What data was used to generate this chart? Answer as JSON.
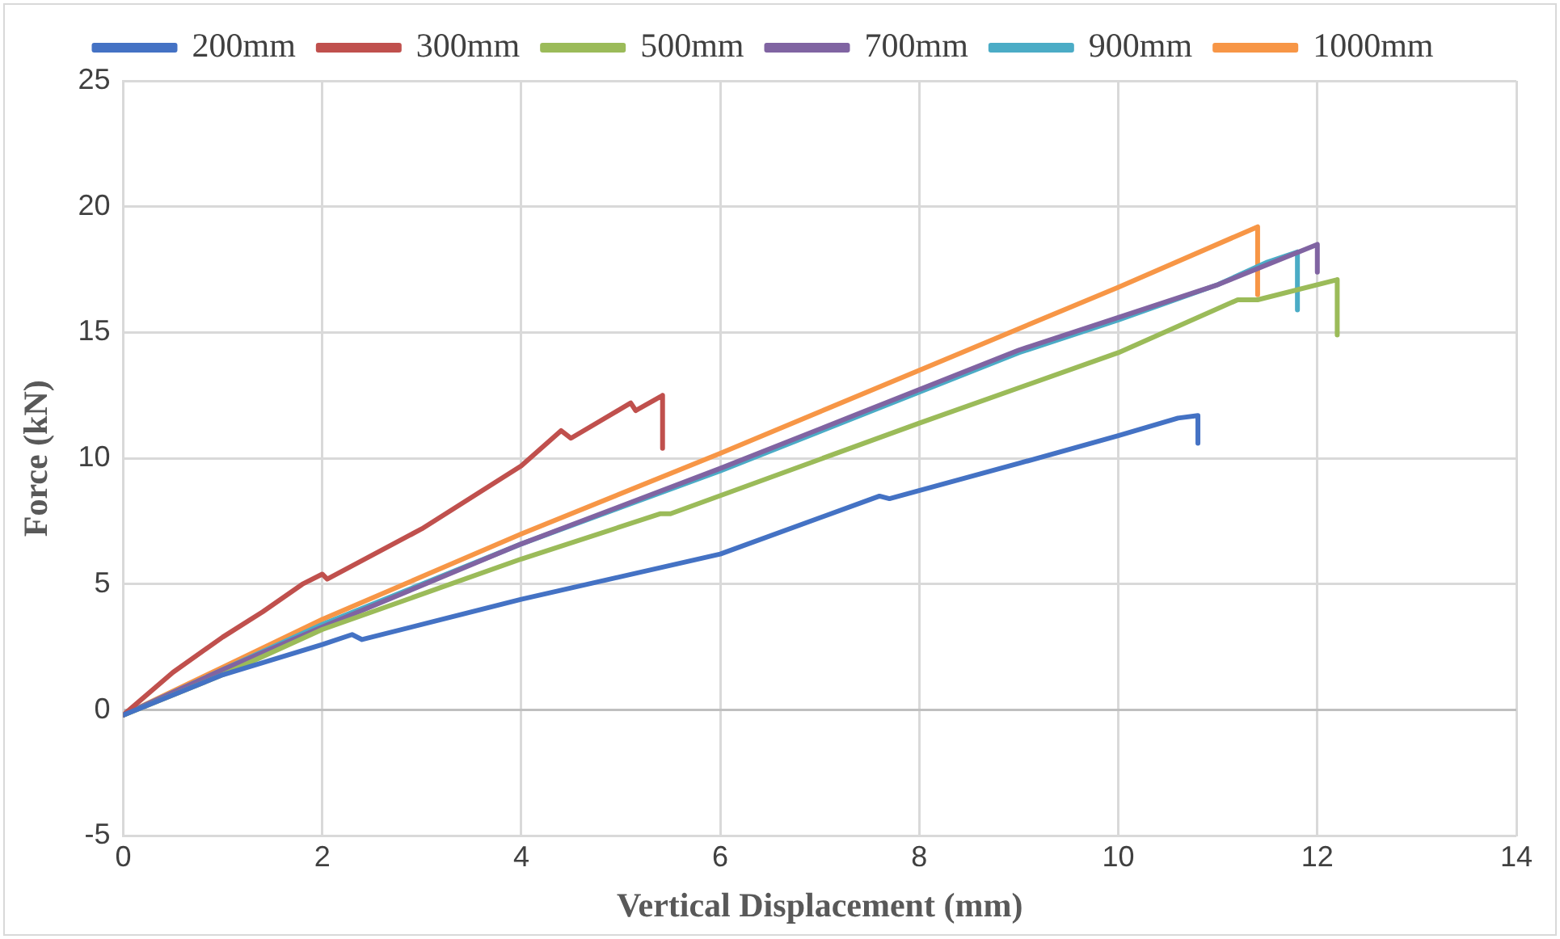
{
  "chart_data": {
    "type": "line",
    "xlabel": "Vertical Displacement (mm)",
    "ylabel": "Force (kN)",
    "xlim": [
      0,
      14
    ],
    "xticks": [
      0,
      2,
      4,
      6,
      8,
      10,
      12,
      14
    ],
    "ylim": [
      -5,
      25
    ],
    "yticks": [
      -5,
      0,
      5,
      10,
      15,
      20,
      25
    ],
    "grid": true,
    "legend": "top",
    "marker": "none",
    "line_style": "solid",
    "series": [
      {
        "name": "200mm",
        "color": "#4472c4",
        "x": [
          0,
          1,
          2,
          2.3,
          2.4,
          4,
          6,
          7.6,
          7.7,
          9,
          10,
          10.6,
          10.8,
          10.8
        ],
        "values": [
          -0.2,
          1.4,
          2.6,
          3.0,
          2.8,
          4.4,
          6.2,
          8.5,
          8.4,
          9.8,
          10.9,
          11.6,
          11.7,
          10.6
        ]
      },
      {
        "name": "300mm",
        "color": "#c0504d",
        "x": [
          0,
          0.5,
          1,
          1.4,
          1.8,
          2,
          2.05,
          3,
          4,
          4.4,
          4.5,
          5.1,
          5.15,
          5.42,
          5.42
        ],
        "values": [
          -0.2,
          1.5,
          2.9,
          3.9,
          5.0,
          5.4,
          5.2,
          7.2,
          9.7,
          11.1,
          10.8,
          12.2,
          11.9,
          12.5,
          10.4
        ]
      },
      {
        "name": "500mm",
        "color": "#9bbb59",
        "x": [
          0,
          1,
          2,
          4,
          5.4,
          5.5,
          8,
          10,
          11.2,
          11.4,
          12.2,
          12.2
        ],
        "values": [
          -0.2,
          1.4,
          3.2,
          6.0,
          7.8,
          7.8,
          11.4,
          14.2,
          16.3,
          16.3,
          17.1,
          14.9
        ]
      },
      {
        "name": "700mm",
        "color": "#8064a2",
        "x": [
          0,
          1,
          2,
          4,
          6,
          9,
          10,
          11,
          12,
          12
        ],
        "values": [
          -0.2,
          1.6,
          3.3,
          6.6,
          9.6,
          14.3,
          15.6,
          16.9,
          18.5,
          17.4
        ]
      },
      {
        "name": "900mm",
        "color": "#4bacc6",
        "x": [
          0,
          1,
          2,
          4,
          6,
          9,
          10,
          11,
          11.5,
          11.8,
          11.8
        ],
        "values": [
          -0.2,
          1.6,
          3.4,
          6.6,
          9.5,
          14.2,
          15.5,
          16.9,
          17.8,
          18.2,
          15.9
        ]
      },
      {
        "name": "1000mm",
        "color": "#f79646",
        "x": [
          0,
          1,
          2,
          4,
          6,
          8,
          10,
          11.4,
          11.4
        ],
        "values": [
          -0.2,
          1.7,
          3.6,
          7.0,
          10.2,
          13.5,
          16.8,
          19.2,
          16.5
        ]
      }
    ]
  }
}
